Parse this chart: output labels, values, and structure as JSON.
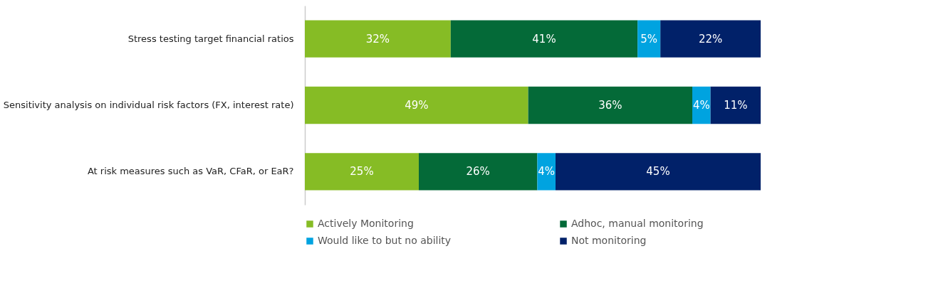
{
  "chart_data": {
    "type": "bar",
    "orientation": "horizontal",
    "stacked": true,
    "categories": [
      "Stress testing target financial ratios",
      "Sensitivity analysis on individual risk factors (FX, interest rate)",
      "At risk measures such as VaR, CFaR, or EaR?"
    ],
    "series": [
      {
        "name": "Actively Monitoring",
        "color": "#86bc25",
        "values": [
          32,
          49,
          25
        ],
        "value_labels": [
          "32%",
          "49%",
          "25%"
        ]
      },
      {
        "name": "Adhoc, manual monitoring",
        "color": "#046a38",
        "values": [
          41,
          36,
          26
        ],
        "value_labels": [
          "41%",
          "36%",
          "26%"
        ]
      },
      {
        "name": "Would like to but no ability",
        "color": "#00a3e0",
        "values": [
          5,
          4,
          4
        ],
        "value_labels": [
          "5%",
          "4%",
          "4%"
        ]
      },
      {
        "name": "Not monitoring",
        "color": "#012169",
        "values": [
          22,
          11,
          45
        ],
        "value_labels": [
          "22%",
          "11%",
          "45%"
        ]
      }
    ],
    "xlim": [
      0,
      100
    ],
    "grid": false,
    "legend": "bottom"
  }
}
